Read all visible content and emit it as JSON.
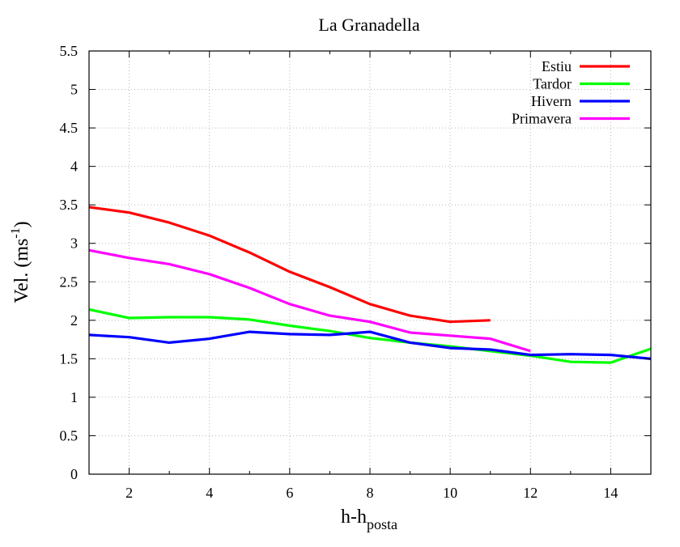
{
  "chart_data": {
    "type": "line",
    "title": "La Granadella",
    "xlabel_main": "h-h",
    "xlabel_sub": "posta",
    "ylabel_main": "Vel. (ms",
    "ylabel_sup": "-1",
    "ylabel_close": ")",
    "xlim": [
      1,
      15
    ],
    "ylim": [
      0,
      5.5
    ],
    "x_ticks": [
      2,
      4,
      6,
      8,
      10,
      12,
      14
    ],
    "y_ticks": [
      0,
      0.5,
      1,
      1.5,
      2,
      2.5,
      3,
      3.5,
      4,
      4.5,
      5,
      5.5
    ],
    "y_tick_labels": [
      "0",
      "0.5",
      "1",
      "1.5",
      "2",
      "2.5",
      "3",
      "3.5",
      "4",
      "4.5",
      "5",
      "5.5"
    ],
    "grid": true,
    "legend_position": "top-right",
    "series": [
      {
        "name": "Estiu",
        "color": "#ff0000",
        "x": [
          1,
          2,
          3,
          4,
          5,
          6,
          7,
          8,
          9,
          10,
          11
        ],
        "values": [
          3.47,
          3.4,
          3.27,
          3.1,
          2.88,
          2.63,
          2.43,
          2.21,
          2.06,
          1.98,
          2.0
        ]
      },
      {
        "name": "Tardor",
        "color": "#00ff00",
        "x": [
          1,
          2,
          3,
          4,
          5,
          6,
          7,
          8,
          9,
          10,
          11,
          12,
          13,
          14,
          15
        ],
        "values": [
          2.14,
          2.03,
          2.04,
          2.04,
          2.01,
          1.93,
          1.86,
          1.77,
          1.71,
          1.66,
          1.6,
          1.54,
          1.46,
          1.45,
          1.63
        ]
      },
      {
        "name": "Hivern",
        "color": "#0000ff",
        "x": [
          1,
          2,
          3,
          4,
          5,
          6,
          7,
          8,
          9,
          10,
          11,
          12,
          13,
          14,
          15
        ],
        "values": [
          1.81,
          1.78,
          1.71,
          1.76,
          1.85,
          1.82,
          1.81,
          1.85,
          1.71,
          1.64,
          1.62,
          1.55,
          1.56,
          1.55,
          1.5
        ]
      },
      {
        "name": "Primavera",
        "color": "#ff00ff",
        "x": [
          1,
          2,
          3,
          4,
          5,
          6,
          7,
          8,
          9,
          10,
          11,
          12
        ],
        "values": [
          2.91,
          2.81,
          2.73,
          2.6,
          2.42,
          2.21,
          2.06,
          1.98,
          1.84,
          1.8,
          1.76,
          1.6
        ]
      }
    ]
  }
}
